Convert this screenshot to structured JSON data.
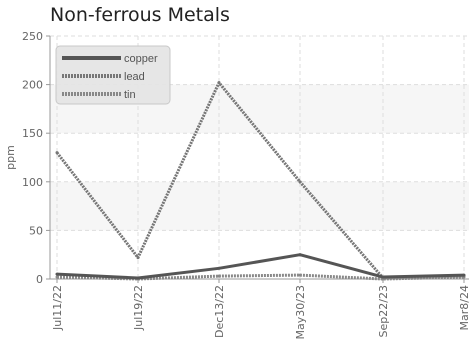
{
  "chart_data": {
    "type": "line",
    "title": "Non-ferrous Metals",
    "xlabel": "",
    "ylabel": "ppm",
    "categories": [
      "Jul11/22",
      "Jul19/22",
      "Dec13/22",
      "May30/23",
      "Sep22/23",
      "Mar8/24"
    ],
    "series": [
      {
        "name": "copper",
        "values": [
          5,
          1,
          11,
          25,
          2,
          4
        ],
        "color": "#555555",
        "dash": "solid"
      },
      {
        "name": "lead",
        "values": [
          130,
          22,
          202,
          100,
          1,
          3
        ],
        "color": "#777777",
        "dash": "dotted"
      },
      {
        "name": "tin",
        "values": [
          2,
          0,
          3,
          4,
          0,
          2
        ],
        "color": "#888888",
        "dash": "dotted"
      }
    ],
    "ylim": [
      0,
      250
    ],
    "yticks": [
      0,
      50,
      100,
      150,
      200,
      250
    ],
    "grid": true,
    "legend_position": "top-left"
  }
}
